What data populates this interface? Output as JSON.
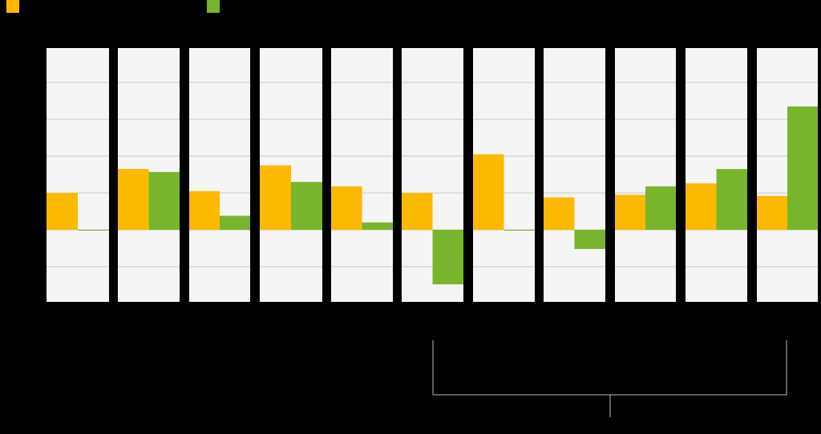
{
  "chart_data": {
    "type": "bar",
    "categories": [
      "",
      "",
      "",
      "",
      "",
      "",
      "",
      "",
      "",
      "",
      ""
    ],
    "series": [
      {
        "color": "#FBB900",
        "values": [
          1.0,
          1.65,
          1.05,
          1.75,
          1.18,
          1.0,
          2.05,
          0.88,
          0.95,
          1.26,
          0.92
        ]
      },
      {
        "color": "#79B52C",
        "values": [
          -0.02,
          1.57,
          0.38,
          1.3,
          0.2,
          -1.48,
          -0.02,
          -0.52,
          1.18,
          1.65,
          3.35
        ]
      }
    ],
    "ylim": [
      -2,
      5
    ],
    "grid": true,
    "legend_position": "top-left",
    "colors": {
      "background": "#000000",
      "panel": "#F5F5F5",
      "grid": "#C8C8C8",
      "bracket": "#BBBBBB"
    }
  }
}
